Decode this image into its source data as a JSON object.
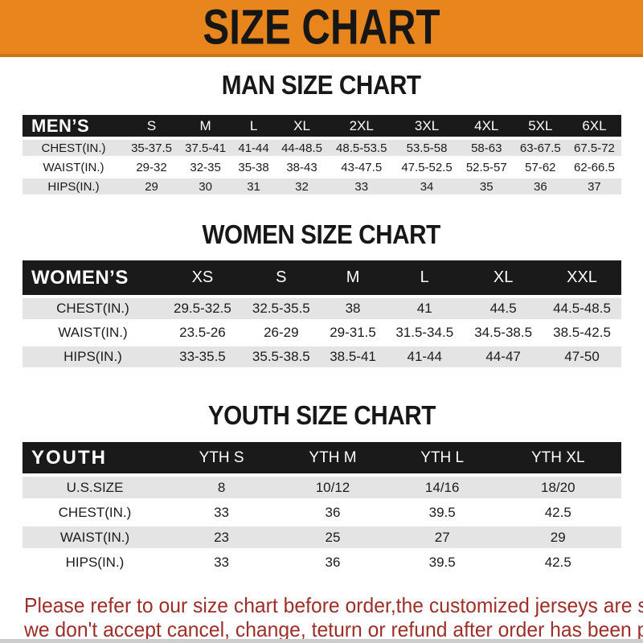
{
  "banner": {
    "title": "SIZE CHART"
  },
  "colors": {
    "banner_orange": "#E8861D",
    "banner_orange_dark": "#cf7414",
    "banner_text": "#161616",
    "bar_black": "#1a1a1a",
    "row_gray": "#e4e4e4",
    "disclaimer_red": "#9e2e28"
  },
  "men": {
    "title": "MAN SIZE CHART",
    "header": [
      "MEN’S",
      "S",
      "M",
      "L",
      "XL",
      "2XL",
      "3XL",
      "4XL",
      "5XL",
      "6XL"
    ],
    "rows": [
      [
        "CHEST(IN.)",
        "35-37.5",
        "37.5-41",
        "41-44",
        "44-48.5",
        "48.5-53.5",
        "53.5-58",
        "58-63",
        "63-67.5",
        "67.5-72"
      ],
      [
        "WAIST(IN.)",
        "29-32",
        "32-35",
        "35-38",
        "38-43",
        "43-47.5",
        "47.5-52.5",
        "52.5-57",
        "57-62",
        "62-66.5"
      ],
      [
        "HIPS(IN.)",
        "29",
        "30",
        "31",
        "32",
        "33",
        "34",
        "35",
        "36",
        "37"
      ]
    ]
  },
  "women": {
    "title": "WOMEN SIZE CHART",
    "header": [
      "WOMEN’S",
      "XS",
      "S",
      "M",
      "L",
      "XL",
      "XXL"
    ],
    "rows": [
      [
        "CHEST(IN.)",
        "29.5-32.5",
        "32.5-35.5",
        "38",
        "41",
        "44.5",
        "44.5-48.5"
      ],
      [
        "WAIST(IN.)",
        "23.5-26",
        "26-29",
        "29-31.5",
        "31.5-34.5",
        "34.5-38.5",
        "38.5-42.5"
      ],
      [
        "HIPS(IN.)",
        "33-35.5",
        "35.5-38.5",
        "38.5-41",
        "41-44",
        "44-47",
        "47-50"
      ]
    ]
  },
  "youth": {
    "title": "YOUTH SIZE CHART",
    "header": [
      "YOUTH",
      "YTH S",
      "YTH M",
      "YTH L",
      "YTH XL"
    ],
    "rows": [
      [
        "U.S.SIZE",
        "8",
        "10/12",
        "14/16",
        "18/20"
      ],
      [
        "CHEST(IN.)",
        "33",
        "36",
        "39.5",
        "42.5"
      ],
      [
        "WAIST(IN.)",
        "23",
        "25",
        "27",
        "29"
      ],
      [
        "HIPS(IN.)",
        "33",
        "36",
        "39.5",
        "42.5"
      ]
    ]
  },
  "footer": {
    "line1": "Please refer to our size chart before order,the customized jerseys are special products,",
    "line2": "we don't accept cancel, change, teturn or refund after order has been placed!"
  }
}
